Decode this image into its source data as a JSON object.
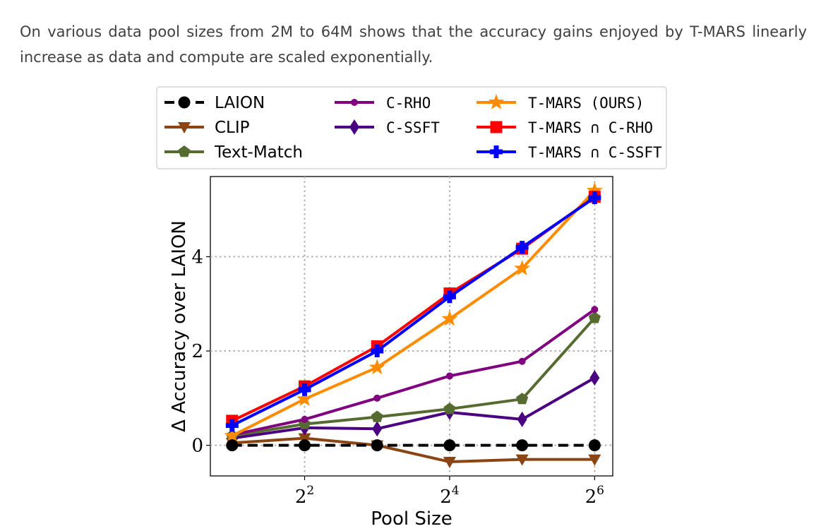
{
  "intro_text": "On various data pool sizes from 2M to 64M shows that the accuracy gains enjoyed by T-MARS linearly increase as data and compute are scaled exponentially.",
  "chart_data": {
    "type": "line",
    "xlabel": "Pool Size",
    "ylabel": "Δ Accuracy over LAION",
    "x_scale": "log2",
    "x": [
      2,
      4,
      8,
      16,
      32,
      64
    ],
    "x_ticks": [
      4,
      16,
      64
    ],
    "x_tick_labels": [
      {
        "base": "2",
        "exp": "2"
      },
      {
        "base": "2",
        "exp": "4"
      },
      {
        "base": "2",
        "exp": "6"
      }
    ],
    "y_ticks": [
      0,
      2,
      4
    ],
    "y_tick_labels": [
      "0",
      "2",
      "4"
    ],
    "xlim_log2": [
      0.7,
      6.25
    ],
    "ylim": [
      -0.65,
      5.7
    ],
    "grid": true,
    "legend_position": "above",
    "series": [
      {
        "name": "LAION",
        "color": "#000000",
        "marker": "circle",
        "dashed": true,
        "values": [
          0,
          0,
          0,
          0,
          0,
          0
        ]
      },
      {
        "name": "CLIP",
        "color": "#8b4513",
        "marker": "triangle-down",
        "values": [
          0.05,
          0.15,
          0.0,
          -0.35,
          -0.3,
          -0.3
        ]
      },
      {
        "name": "Text-Match",
        "color": "#556b2f",
        "marker": "pentagon",
        "values": [
          0.2,
          0.45,
          0.6,
          0.77,
          0.98,
          2.7
        ]
      },
      {
        "name": "C-RHO",
        "color": "#800080",
        "marker": "small-circle",
        "values": [
          0.22,
          0.55,
          1.0,
          1.47,
          1.78,
          2.88
        ]
      },
      {
        "name": "C-SSFT",
        "color": "#4b0082",
        "marker": "diamond",
        "values": [
          0.15,
          0.37,
          0.35,
          0.7,
          0.55,
          1.43
        ]
      },
      {
        "name": "T-MARS (OURS)",
        "color": "#ff8c00",
        "marker": "star",
        "values": [
          0.2,
          0.98,
          1.65,
          2.68,
          3.75,
          5.4
        ]
      },
      {
        "name": "T-MARS ∩ C-RHO",
        "color": "#ff0000",
        "marker": "square",
        "values": [
          0.52,
          1.25,
          2.1,
          3.22,
          4.17,
          5.27
        ]
      },
      {
        "name": "T-MARS ∩ C-SSFT",
        "color": "#0000ff",
        "marker": "plus",
        "values": [
          0.42,
          1.18,
          2.0,
          3.15,
          4.2,
          5.25
        ]
      }
    ]
  }
}
